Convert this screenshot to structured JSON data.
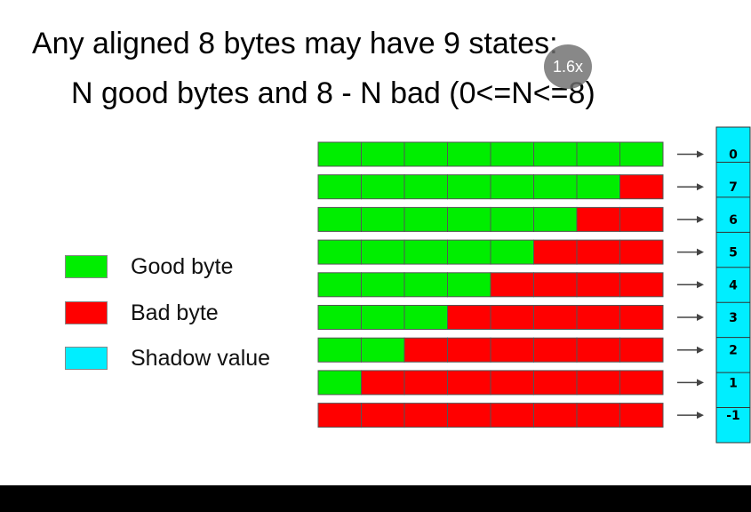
{
  "title_line1": "Any aligned 8 bytes may have 9 states:",
  "title_line2": "N good bytes and 8 - N bad (0<=N<=8)",
  "legend": [
    {
      "label": "Good byte",
      "color": "#00ee00"
    },
    {
      "label": "Bad byte",
      "color": "#ff0000"
    },
    {
      "label": "Shadow value",
      "color": "#00eeff"
    }
  ],
  "rows": [
    {
      "good": 8,
      "shadow": "0"
    },
    {
      "good": 7,
      "shadow": "7"
    },
    {
      "good": 6,
      "shadow": "6"
    },
    {
      "good": 5,
      "shadow": "5"
    },
    {
      "good": 4,
      "shadow": "4"
    },
    {
      "good": 3,
      "shadow": "3"
    },
    {
      "good": 2,
      "shadow": "2"
    },
    {
      "good": 1,
      "shadow": "1"
    },
    {
      "good": 0,
      "shadow": "-1"
    }
  ],
  "bytes_per_row": 8,
  "speed_badge": "1.6x"
}
